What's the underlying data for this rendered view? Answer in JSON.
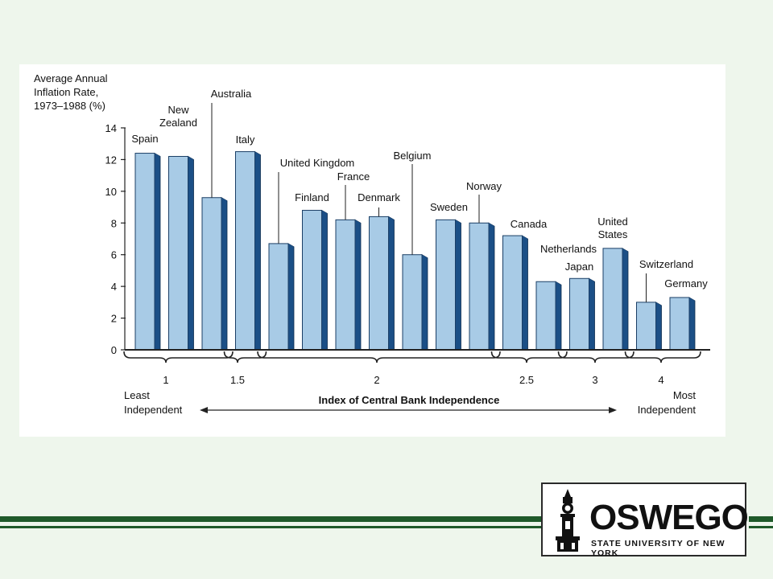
{
  "chart_data": {
    "type": "bar",
    "ylabel": [
      "Average Annual",
      "Inflation Rate,",
      "1973–1988 (%)"
    ],
    "ylim": [
      0,
      14
    ],
    "yticks": [
      "0",
      "2",
      "4",
      "6",
      "8",
      "10",
      "12",
      "14"
    ],
    "categories": [
      "Spain",
      "New Zealand",
      "Australia",
      "Italy",
      "United Kingdom",
      "Finland",
      "France",
      "Denmark",
      "Belgium",
      "Sweden",
      "Norway",
      "Canada",
      "Netherlands",
      "Japan",
      "United States",
      "Switzerland",
      "Germany"
    ],
    "values": [
      12.4,
      12.2,
      9.6,
      12.5,
      6.7,
      8.8,
      8.2,
      8.4,
      6.0,
      8.2,
      8.0,
      7.2,
      4.3,
      4.5,
      6.4,
      3.0,
      3.3
    ],
    "groups": [
      {
        "label": "1"
      },
      {
        "label": "1.5"
      },
      {
        "label": "2"
      },
      {
        "label": "2.5"
      },
      {
        "label": "3"
      },
      {
        "label": "4"
      }
    ],
    "xlabel": "Index of Central Bank Independence",
    "left_label": [
      "Least",
      "Independent"
    ],
    "right_label": [
      "Most",
      "Independent"
    ]
  },
  "logo": {
    "word": "OSWEGO",
    "subtitle": "STATE UNIVERSITY OF NEW YORK",
    "tower_icon": "clock-tower-icon"
  },
  "colors": {
    "bar_front": "#a8cbe6",
    "bar_side": "#1b4f86",
    "footer_green": "#1f5a2a",
    "background": "#eef6ec"
  }
}
